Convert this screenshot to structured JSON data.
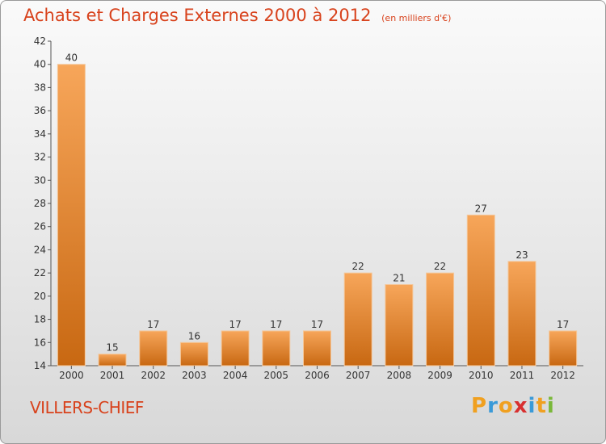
{
  "chart_data": {
    "type": "bar",
    "title": "Achats et Charges Externes 2000 à 2012",
    "subtitle": "(en milliers d'€)",
    "categories": [
      "2000",
      "2001",
      "2002",
      "2003",
      "2004",
      "2005",
      "2006",
      "2007",
      "2008",
      "2009",
      "2010",
      "2011",
      "2012"
    ],
    "values": [
      40,
      15,
      17,
      16,
      17,
      17,
      17,
      22,
      21,
      22,
      27,
      23,
      17
    ],
    "ylim": [
      14,
      42
    ],
    "yticks": [
      14,
      16,
      18,
      20,
      22,
      24,
      26,
      28,
      30,
      32,
      34,
      36,
      38,
      40,
      42
    ],
    "xlabel": "",
    "ylabel": "",
    "grid": false,
    "colors": {
      "bar_light": "#f7a65a",
      "bar_dark": "#c86812",
      "title": "#d8421c"
    }
  },
  "footer": {
    "town": "VILLERS-CHIEF",
    "logo": [
      "P",
      "r",
      "o",
      "x",
      "i",
      "t",
      "i"
    ],
    "logo_colors": [
      "#f0a020",
      "#3a9ad8",
      "#f0a020",
      "#d83030",
      "#3a9ad8",
      "#f0a020",
      "#7ab83a"
    ]
  }
}
